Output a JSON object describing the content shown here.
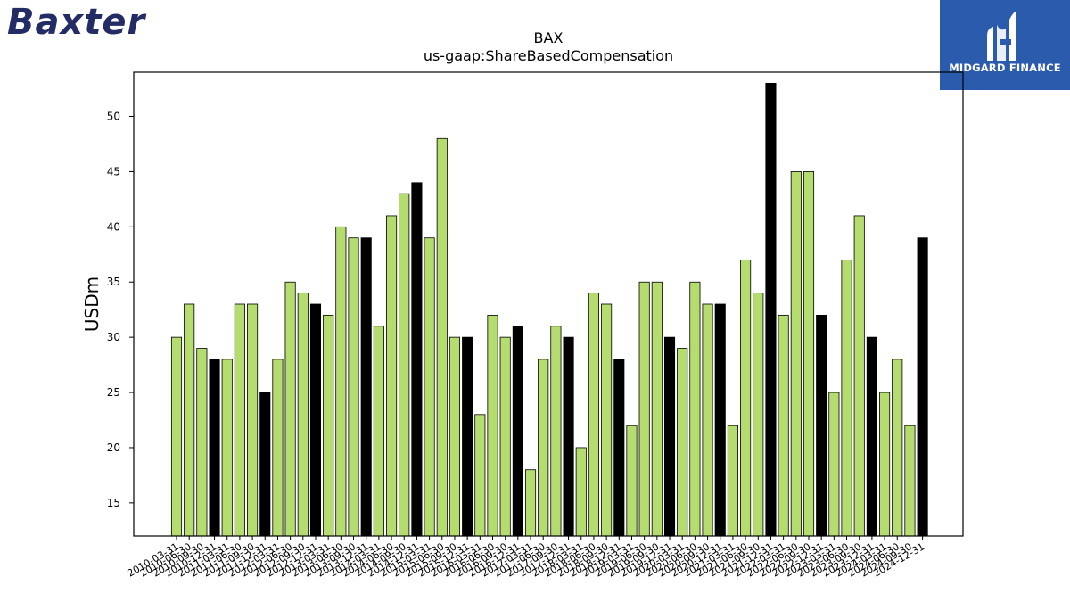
{
  "logos": {
    "left_text": "Baxter",
    "right_text": "MIDGARD FINANCE"
  },
  "colors": {
    "bar_regular": "#b5dc6e",
    "bar_year_end": "#000000",
    "logo_left": "#232c64",
    "logo_right_bg": "#2b5bac"
  },
  "chart_data": {
    "type": "bar",
    "title": "BAX",
    "subtitle": "us-gaap:ShareBasedCompensation",
    "xlabel": "",
    "ylabel": "USDm",
    "ylim": [
      12,
      54
    ],
    "yticks": [
      15,
      20,
      25,
      30,
      35,
      40,
      45,
      50
    ],
    "grid": false,
    "categories": [
      "2010-03-31",
      "2010-06-30",
      "2010-09-30",
      "2010-12-31",
      "2011-03-31",
      "2011-06-30",
      "2011-09-30",
      "2011-12-31",
      "2012-03-31",
      "2012-06-30",
      "2012-09-30",
      "2012-12-31",
      "2013-03-31",
      "2013-06-30",
      "2013-09-30",
      "2013-12-31",
      "2014-03-31",
      "2014-06-30",
      "2014-09-30",
      "2014-12-31",
      "2015-03-31",
      "2015-06-30",
      "2015-09-30",
      "2015-12-31",
      "2016-03-31",
      "2016-06-30",
      "2016-09-30",
      "2016-12-31",
      "2017-03-31",
      "2017-06-30",
      "2017-09-30",
      "2017-12-31",
      "2018-03-31",
      "2018-06-30",
      "2018-09-30",
      "2018-12-31",
      "2019-03-31",
      "2019-06-30",
      "2019-09-30",
      "2019-12-31",
      "2020-03-31",
      "2020-06-30",
      "2020-09-30",
      "2020-12-31",
      "2021-03-31",
      "2021-06-30",
      "2021-09-30",
      "2021-12-31",
      "2022-03-31",
      "2022-06-30",
      "2022-09-30",
      "2022-12-31",
      "2023-03-31",
      "2023-06-30",
      "2023-09-30",
      "2023-12-31",
      "2024-03-31",
      "2024-06-30",
      "2024-09-30",
      "2024-12-31"
    ],
    "values": [
      30,
      33,
      29,
      28,
      28,
      33,
      33,
      25,
      28,
      35,
      34,
      33,
      32,
      40,
      39,
      39,
      31,
      41,
      43,
      44,
      39,
      48,
      30,
      30,
      23,
      32,
      30,
      31,
      18,
      28,
      31,
      30,
      20,
      34,
      33,
      28,
      22,
      35,
      35,
      30,
      29,
      35,
      33,
      33,
      22,
      37,
      34,
      53,
      32,
      45,
      45,
      32,
      25,
      37,
      41,
      30,
      25,
      28,
      22,
      39
    ]
  }
}
